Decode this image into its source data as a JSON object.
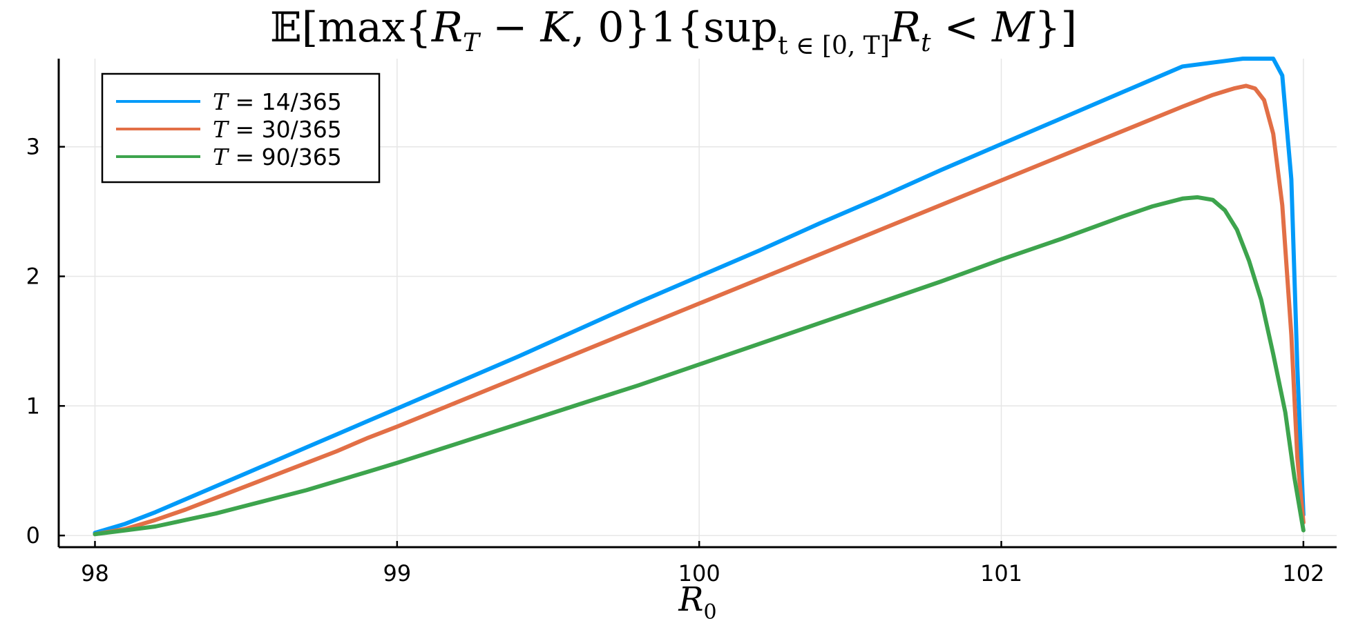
{
  "chart_data": {
    "type": "line",
    "title": "𝔼[max{R_T − K, 0}1{sup_{t ∈ [0, T]} R_t < M}]",
    "title_parts": {
      "p1": "𝔼[max{",
      "p2": "R",
      "p3": "T",
      "p4": " − ",
      "p5": "K",
      "p6": ", 0}1{sup",
      "p7": "t ∈ [0, T]",
      "p8": "R",
      "p9": "t",
      "p10": " < ",
      "p11": "M",
      "p12": "}]"
    },
    "xlabel": "R₀",
    "xlabel_parts": {
      "base": "R",
      "sub": "0"
    },
    "ylabel": "",
    "xlim": [
      97.88,
      102.11
    ],
    "ylim": [
      -0.09,
      3.68
    ],
    "xticks": [
      98,
      99,
      100,
      101,
      102
    ],
    "xtick_labels": [
      "98",
      "99",
      "100",
      "101",
      "102"
    ],
    "yticks": [
      0,
      1,
      2,
      3
    ],
    "ytick_labels": [
      "0",
      "1",
      "2",
      "3"
    ],
    "grid": true,
    "legend_placement": "top-left",
    "series": [
      {
        "name": "T = 14/365",
        "name_var": "T",
        "name_rest": " = 14/365",
        "color": "#009af9",
        "x": [
          98.0,
          98.1,
          98.2,
          98.3,
          98.4,
          98.5,
          98.6,
          98.7,
          98.8,
          98.9,
          99.0,
          99.2,
          99.4,
          99.6,
          99.8,
          100.0,
          100.2,
          100.4,
          100.6,
          100.8,
          101.0,
          101.2,
          101.4,
          101.6,
          101.8,
          101.84,
          101.87,
          101.9,
          101.93,
          101.96,
          101.98,
          102.0
        ],
        "y": [
          0.02,
          0.09,
          0.18,
          0.28,
          0.38,
          0.48,
          0.58,
          0.68,
          0.78,
          0.88,
          0.98,
          1.18,
          1.38,
          1.59,
          1.8,
          2.0,
          2.2,
          2.41,
          2.61,
          2.82,
          3.02,
          3.22,
          3.42,
          3.62,
          3.82,
          3.85,
          3.86,
          3.83,
          3.55,
          2.75,
          1.3,
          0.16
        ]
      },
      {
        "name": "T = 30/365",
        "name_var": "T",
        "name_rest": " = 30/365",
        "color": "#e26f46",
        "x": [
          98.0,
          98.1,
          98.2,
          98.3,
          98.4,
          98.5,
          98.6,
          98.7,
          98.8,
          98.9,
          99.0,
          99.2,
          99.4,
          99.6,
          99.8,
          100.0,
          100.2,
          100.4,
          100.6,
          100.8,
          101.0,
          101.2,
          101.4,
          101.6,
          101.7,
          101.77,
          101.81,
          101.84,
          101.87,
          101.9,
          101.93,
          101.96,
          101.98,
          102.0
        ],
        "y": [
          0.01,
          0.05,
          0.12,
          0.2,
          0.29,
          0.38,
          0.47,
          0.56,
          0.65,
          0.75,
          0.84,
          1.03,
          1.22,
          1.41,
          1.6,
          1.79,
          1.98,
          2.17,
          2.36,
          2.55,
          2.74,
          2.93,
          3.12,
          3.31,
          3.4,
          3.45,
          3.47,
          3.45,
          3.36,
          3.1,
          2.55,
          1.55,
          0.6,
          0.1
        ]
      },
      {
        "name": "T = 90/365",
        "name_var": "T",
        "name_rest": " = 90/365",
        "color": "#3da44d",
        "x": [
          98.0,
          98.1,
          98.2,
          98.3,
          98.4,
          98.5,
          98.6,
          98.7,
          98.8,
          98.9,
          99.0,
          99.2,
          99.4,
          99.6,
          99.8,
          100.0,
          100.2,
          100.4,
          100.6,
          100.8,
          101.0,
          101.2,
          101.4,
          101.5,
          101.6,
          101.65,
          101.7,
          101.74,
          101.78,
          101.82,
          101.86,
          101.9,
          101.94,
          101.97,
          102.0
        ],
        "y": [
          0.01,
          0.04,
          0.07,
          0.12,
          0.17,
          0.23,
          0.29,
          0.35,
          0.42,
          0.49,
          0.56,
          0.71,
          0.86,
          1.01,
          1.16,
          1.32,
          1.48,
          1.64,
          1.8,
          1.96,
          2.13,
          2.29,
          2.46,
          2.54,
          2.6,
          2.61,
          2.59,
          2.51,
          2.36,
          2.12,
          1.82,
          1.4,
          0.95,
          0.45,
          0.04
        ]
      }
    ]
  }
}
